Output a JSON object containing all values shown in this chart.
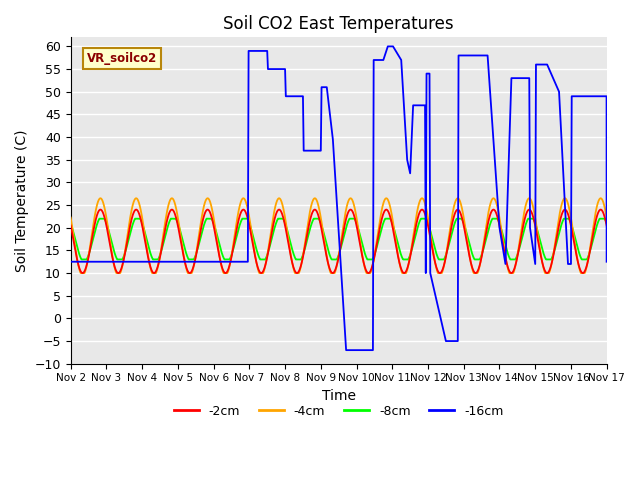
{
  "title": "Soil CO2 East Temperatures",
  "xlabel": "Time",
  "ylabel": "Soil Temperature (C)",
  "ylim": [
    -10,
    62
  ],
  "xlim": [
    0,
    360
  ],
  "bg_color": "#e8e8e8",
  "grid_color": "white",
  "legend_label": "VR_soilco2",
  "series_labels": [
    "-2cm",
    "-4cm",
    "-8cm",
    "-16cm"
  ],
  "series_colors": [
    "red",
    "orange",
    "lime",
    "blue"
  ],
  "x_tick_labels": [
    "Nov 2",
    "Nov 3",
    "Nov 4",
    "Nov 5",
    "Nov 6",
    "Nov 7",
    "Nov 8",
    "Nov 9",
    "Nov 10",
    "Nov 11",
    "Nov 12",
    "Nov 13",
    "Nov 14",
    "Nov 15",
    "Nov 16",
    "Nov 17"
  ],
  "x_tick_positions": [
    0,
    24,
    48,
    72,
    96,
    120,
    144,
    168,
    192,
    216,
    240,
    264,
    288,
    312,
    336,
    360
  ],
  "yticks": [
    -10,
    -5,
    0,
    5,
    10,
    15,
    20,
    25,
    30,
    35,
    40,
    45,
    50,
    55,
    60
  ]
}
